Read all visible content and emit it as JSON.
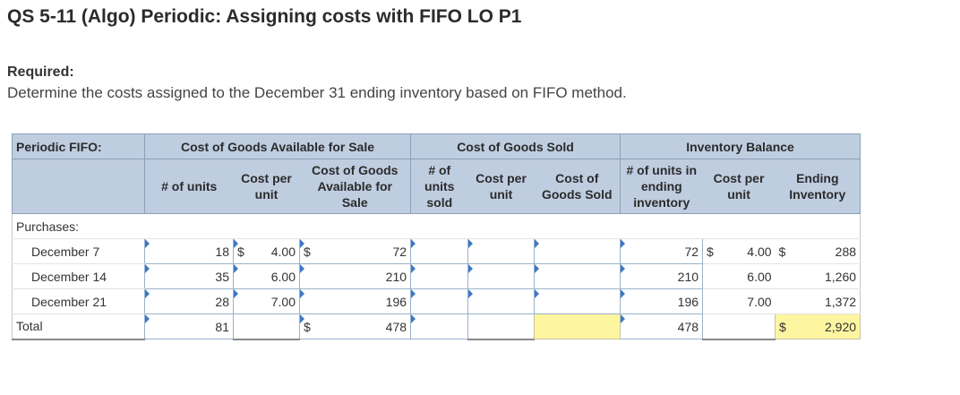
{
  "title": "QS 5-11 (Algo) Periodic: Assigning costs with FIFO LO P1",
  "required_label": "Required:",
  "required_text": "Determine the costs assigned to the December 31 ending inventory based on FIFO method.",
  "table": {
    "corner_label": "Periodic FIFO:",
    "group_headers": {
      "cogs_available": "Cost of Goods Available for Sale",
      "cogs_sold": "Cost of Goods Sold",
      "inventory_balance": "Inventory Balance"
    },
    "col_headers": {
      "units": "# of units",
      "cost_per_unit": "Cost per unit",
      "cogs_available": "Cost of Goods Available for Sale",
      "units_sold": "# of units sold",
      "sold_cost_per_unit": "Cost per unit",
      "cost_goods_sold": "Cost of Goods Sold",
      "units_ending": "# of units in ending inventory",
      "inv_cost_per_unit": "Cost per unit",
      "ending_inventory": "Ending Inventory"
    },
    "purchases_label": "Purchases:",
    "rows": [
      {
        "label": "December 7",
        "units": "18",
        "cpu_dollar": "$",
        "cpu": "4.00",
        "avail_dollar": "$",
        "avail": "72",
        "units_sold": "",
        "sold_cpu": "",
        "cogs": "",
        "end_units": "72",
        "inv_cpu_dollar": "$",
        "inv_cpu": "4.00",
        "end_dollar": "$",
        "end_inv": "288"
      },
      {
        "label": "December 14",
        "units": "35",
        "cpu": "6.00",
        "avail": "210",
        "units_sold": "",
        "sold_cpu": "",
        "cogs": "",
        "end_units": "210",
        "inv_cpu": "6.00",
        "end_inv": "1,260"
      },
      {
        "label": "December 21",
        "units": "28",
        "cpu": "7.00",
        "avail": "196",
        "units_sold": "",
        "sold_cpu": "",
        "cogs": "",
        "end_units": "196",
        "inv_cpu": "7.00",
        "end_inv": "1,372"
      }
    ],
    "total": {
      "label": "Total",
      "units": "81",
      "avail_dollar": "$",
      "avail": "478",
      "end_units": "478",
      "end_dollar": "$",
      "end_inv": "2,920"
    }
  }
}
